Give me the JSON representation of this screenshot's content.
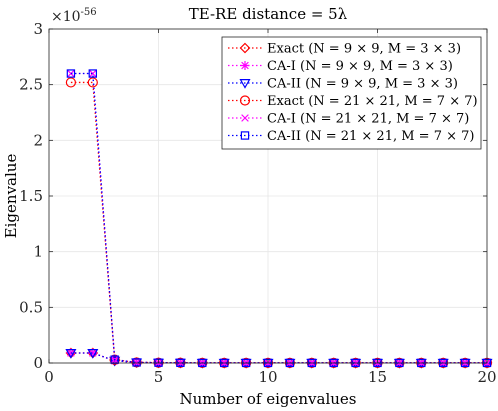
{
  "chart_data": {
    "type": "line",
    "title": "TE-RE distance = 5λ",
    "xlabel": "Number of eigenvalues",
    "ylabel": "Eigenvalue",
    "y_exponent": "×10",
    "y_exponent_power": "-56",
    "xlim": [
      0,
      20
    ],
    "ylim": [
      0,
      3
    ],
    "xticks": [
      0,
      5,
      10,
      15,
      20
    ],
    "xtick_labels": [
      "0",
      "5",
      "10",
      "15",
      "20"
    ],
    "yticks": [
      0,
      0.5,
      1,
      1.5,
      2,
      2.5,
      3
    ],
    "ytick_labels": [
      "0",
      "0.5",
      "1",
      "1.5",
      "2",
      "2.5",
      "3"
    ],
    "grid": true,
    "legend_position": "top-right",
    "x": [
      1,
      2,
      3,
      4,
      5,
      6,
      7,
      8,
      9,
      10,
      11,
      12,
      13,
      14,
      15,
      16,
      17,
      18,
      19,
      20
    ],
    "series": [
      {
        "name": "Exact (N = 9 × 9, M = 3 × 3)",
        "color": "#ff0000",
        "marker": "diamond",
        "values": [
          0.09,
          0.09,
          0.02,
          0.005,
          0.003,
          0.002,
          0.001,
          0.001,
          0.001,
          0.001,
          0.001,
          0.001,
          0.001,
          0.001,
          0.001,
          0.001,
          0.001,
          0.001,
          0.001,
          0.001
        ]
      },
      {
        "name": "CA-I (N = 9 × 9, M = 3 × 3)",
        "color": "#ff00ff",
        "marker": "asterisk",
        "values": [
          0.09,
          0.09,
          0.02,
          0.005,
          0.003,
          0.002,
          0.001,
          0.001,
          0.001,
          0.001,
          0.001,
          0.001,
          0.001,
          0.001,
          0.001,
          0.001,
          0.001,
          0.001,
          0.001,
          0.001
        ]
      },
      {
        "name": "CA-II (N = 9 × 9, M = 3 × 3)",
        "color": "#0000ff",
        "marker": "triangle-down",
        "values": [
          0.09,
          0.09,
          0.02,
          0.005,
          0.003,
          0.002,
          0.001,
          0.001,
          0.001,
          0.001,
          0.001,
          0.001,
          0.001,
          0.001,
          0.001,
          0.001,
          0.001,
          0.001,
          0.001,
          0.001
        ]
      },
      {
        "name": "Exact (N = 21 × 21, M = 7 × 7)",
        "color": "#ff0000",
        "marker": "circle",
        "values": [
          2.52,
          2.52,
          0.03,
          0.005,
          0.003,
          0.002,
          0.001,
          0.001,
          0.001,
          0.001,
          0.001,
          0.001,
          0.001,
          0.001,
          0.001,
          0.001,
          0.001,
          0.001,
          0.001,
          0.001
        ]
      },
      {
        "name": "CA-I (N = 21 × 21, M = 7 × 7)",
        "color": "#ff00ff",
        "marker": "x",
        "values": [
          2.6,
          2.6,
          0.03,
          0.005,
          0.003,
          0.002,
          0.001,
          0.001,
          0.001,
          0.001,
          0.001,
          0.001,
          0.001,
          0.001,
          0.001,
          0.001,
          0.001,
          0.001,
          0.001,
          0.001
        ]
      },
      {
        "name": "CA-II (N = 21 × 21, M = 7 × 7)",
        "color": "#0000ff",
        "marker": "square",
        "values": [
          2.6,
          2.6,
          0.03,
          0.005,
          0.003,
          0.002,
          0.001,
          0.001,
          0.001,
          0.001,
          0.001,
          0.001,
          0.001,
          0.001,
          0.001,
          0.001,
          0.001,
          0.001,
          0.001,
          0.001
        ]
      }
    ]
  }
}
